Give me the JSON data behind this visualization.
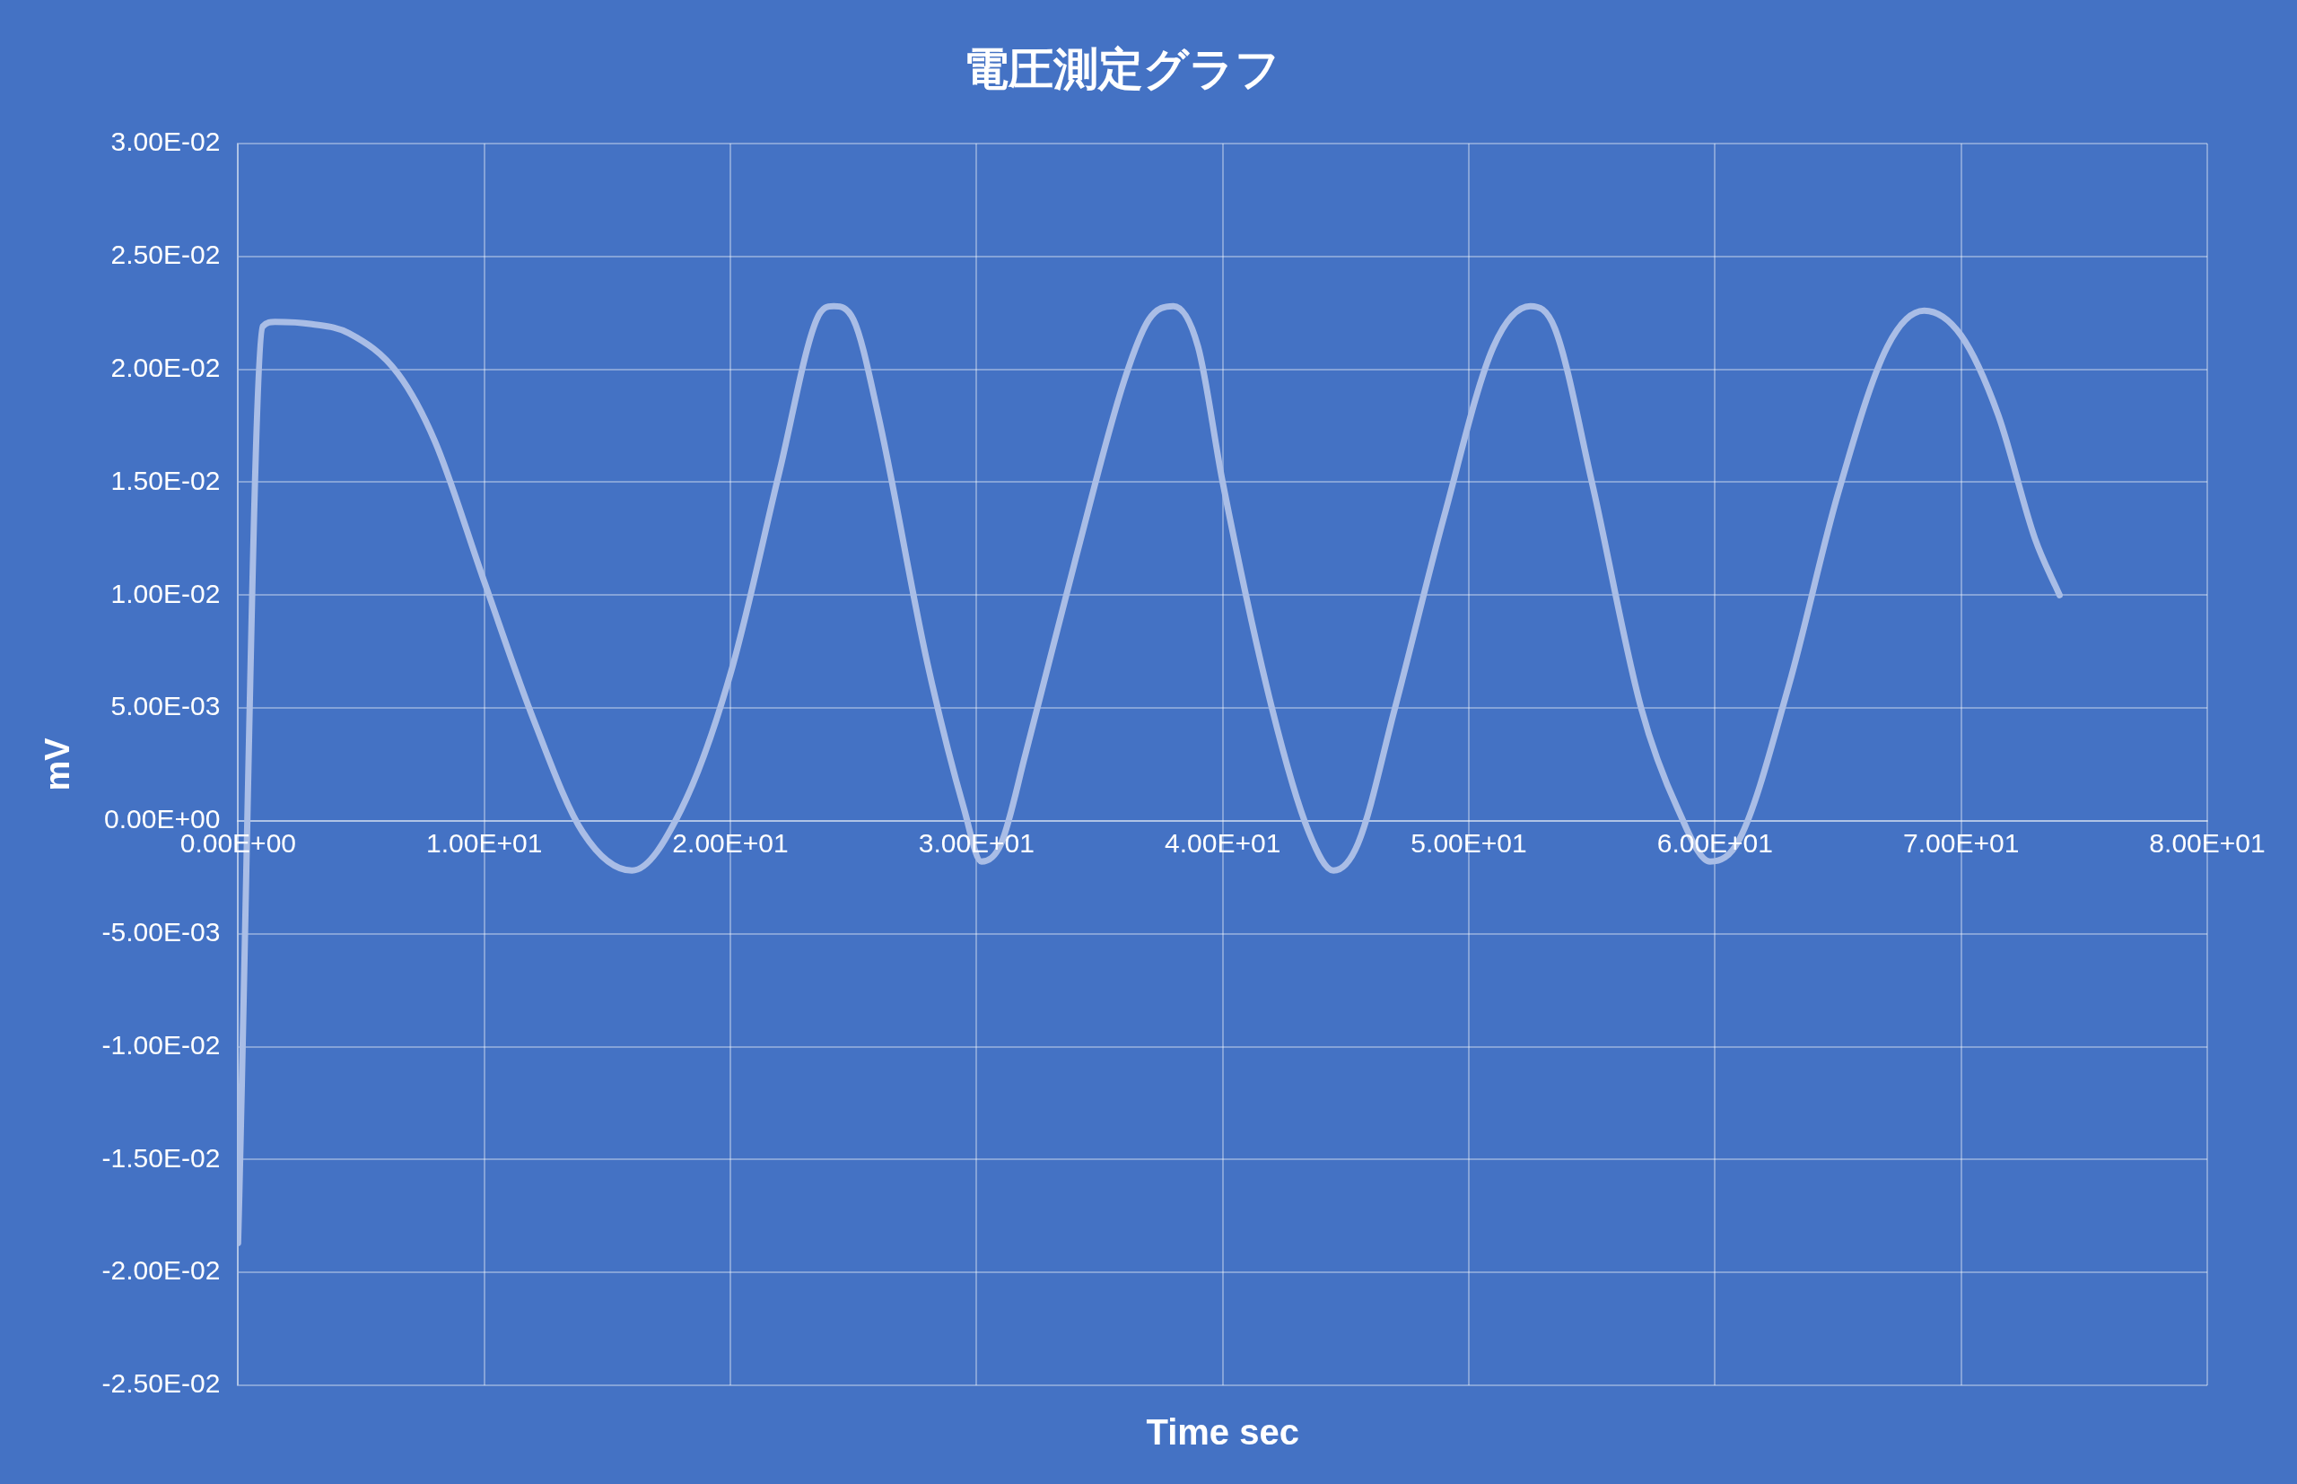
{
  "chart_data": {
    "type": "line",
    "title": "電圧測定グラフ",
    "xlabel": "Time sec",
    "ylabel": "mV",
    "xlim": [
      0,
      80
    ],
    "xticks": [
      {
        "value": 0,
        "label": "0.00E+00"
      },
      {
        "value": 10,
        "label": "1.00E+01"
      },
      {
        "value": 20,
        "label": "2.00E+01"
      },
      {
        "value": 30,
        "label": "3.00E+01"
      },
      {
        "value": 40,
        "label": "4.00E+01"
      },
      {
        "value": 50,
        "label": "5.00E+01"
      },
      {
        "value": 60,
        "label": "6.00E+01"
      },
      {
        "value": 70,
        "label": "7.00E+01"
      },
      {
        "value": 80,
        "label": "8.00E+01"
      }
    ],
    "ylim": [
      -0.025,
      0.03
    ],
    "yticks": [
      {
        "value": -0.025,
        "label": "-2.50E-02"
      },
      {
        "value": -0.02,
        "label": "-2.00E-02"
      },
      {
        "value": -0.015,
        "label": "-1.50E-02"
      },
      {
        "value": -0.01,
        "label": "-1.00E-02"
      },
      {
        "value": -0.005,
        "label": "-5.00E-03"
      },
      {
        "value": 0,
        "label": "0.00E+00"
      },
      {
        "value": 0.005,
        "label": "5.00E-03"
      },
      {
        "value": 0.01,
        "label": "1.00E-02"
      },
      {
        "value": 0.015,
        "label": "1.50E-02"
      },
      {
        "value": 0.02,
        "label": "2.00E-02"
      },
      {
        "value": 0.025,
        "label": "2.50E-02"
      },
      {
        "value": 0.03,
        "label": "3.00E-02"
      }
    ],
    "grid": true,
    "marker": "none",
    "line_style": "solid",
    "series": [
      {
        "color": "#a9bde6",
        "x": [
          0,
          1,
          1.5,
          3,
          4.5,
          6.5,
          8,
          10,
          12,
          14,
          16,
          18,
          20,
          22,
          23.5,
          24.2,
          25,
          26,
          28,
          29.5,
          30.2,
          31,
          32,
          34,
          36,
          37,
          38,
          39,
          40,
          42,
          43.5,
          44.5,
          45.5,
          47,
          49,
          51,
          52.5,
          53.5,
          55,
          57,
          58.5,
          59.8,
          61,
          63,
          65,
          67,
          68.5,
          70,
          71.5,
          73,
          74
        ],
        "values": [
          -0.0187,
          0.0219,
          0.0221,
          0.022,
          0.0216,
          0.0198,
          0.0168,
          0.0106,
          0.0045,
          -0.0005,
          -0.0022,
          0.0005,
          0.0065,
          0.0155,
          0.0222,
          0.0228,
          0.0222,
          0.018,
          0.007,
          0.0005,
          -0.0018,
          -0.001,
          0.003,
          0.0115,
          0.0195,
          0.0222,
          0.0228,
          0.021,
          0.015,
          0.005,
          -0.0005,
          -0.0022,
          -0.001,
          0.005,
          0.0135,
          0.021,
          0.0228,
          0.0218,
          0.015,
          0.005,
          0.0005,
          -0.0018,
          -0.0008,
          0.006,
          0.0145,
          0.021,
          0.0226,
          0.0215,
          0.018,
          0.0125,
          0.01
        ]
      }
    ]
  }
}
